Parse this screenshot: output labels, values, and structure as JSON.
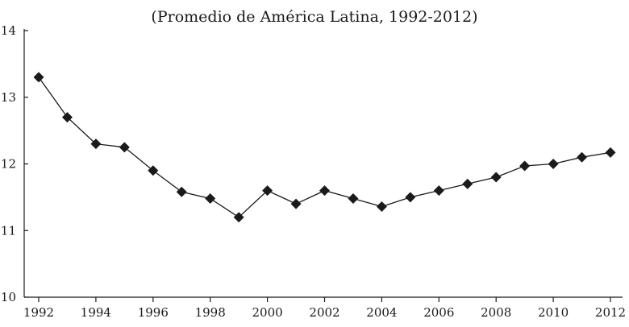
{
  "chart_data": {
    "type": "line",
    "title": "(Promedio de América Latina, 1992-2012)",
    "xlabel": "",
    "ylabel": "",
    "x": [
      1992,
      1993,
      1994,
      1995,
      1996,
      1997,
      1998,
      1999,
      2000,
      2001,
      2002,
      2003,
      2004,
      2005,
      2006,
      2007,
      2008,
      2009,
      2010,
      2011,
      2012
    ],
    "series": [
      {
        "name": "Promedio de América Latina",
        "values": [
          13.3,
          12.7,
          12.3,
          12.25,
          11.9,
          11.58,
          11.48,
          11.2,
          11.6,
          11.4,
          11.6,
          11.48,
          11.36,
          11.5,
          11.6,
          11.7,
          11.8,
          11.97,
          12.0,
          12.1,
          12.17
        ]
      }
    ],
    "ylim": [
      10,
      14
    ],
    "xlim": [
      1992,
      2012
    ],
    "y_ticks": [
      "10",
      "11",
      "12",
      "13",
      "14"
    ],
    "x_ticks": [
      "1992",
      "1994",
      "1996",
      "1998",
      "2000",
      "2002",
      "2004",
      "2006",
      "2008",
      "2010",
      "2012"
    ],
    "grid": false,
    "legend": "none",
    "marker": "diamond",
    "colors": {
      "line": "#1a1a1a",
      "text": "#1a1a1a"
    }
  }
}
